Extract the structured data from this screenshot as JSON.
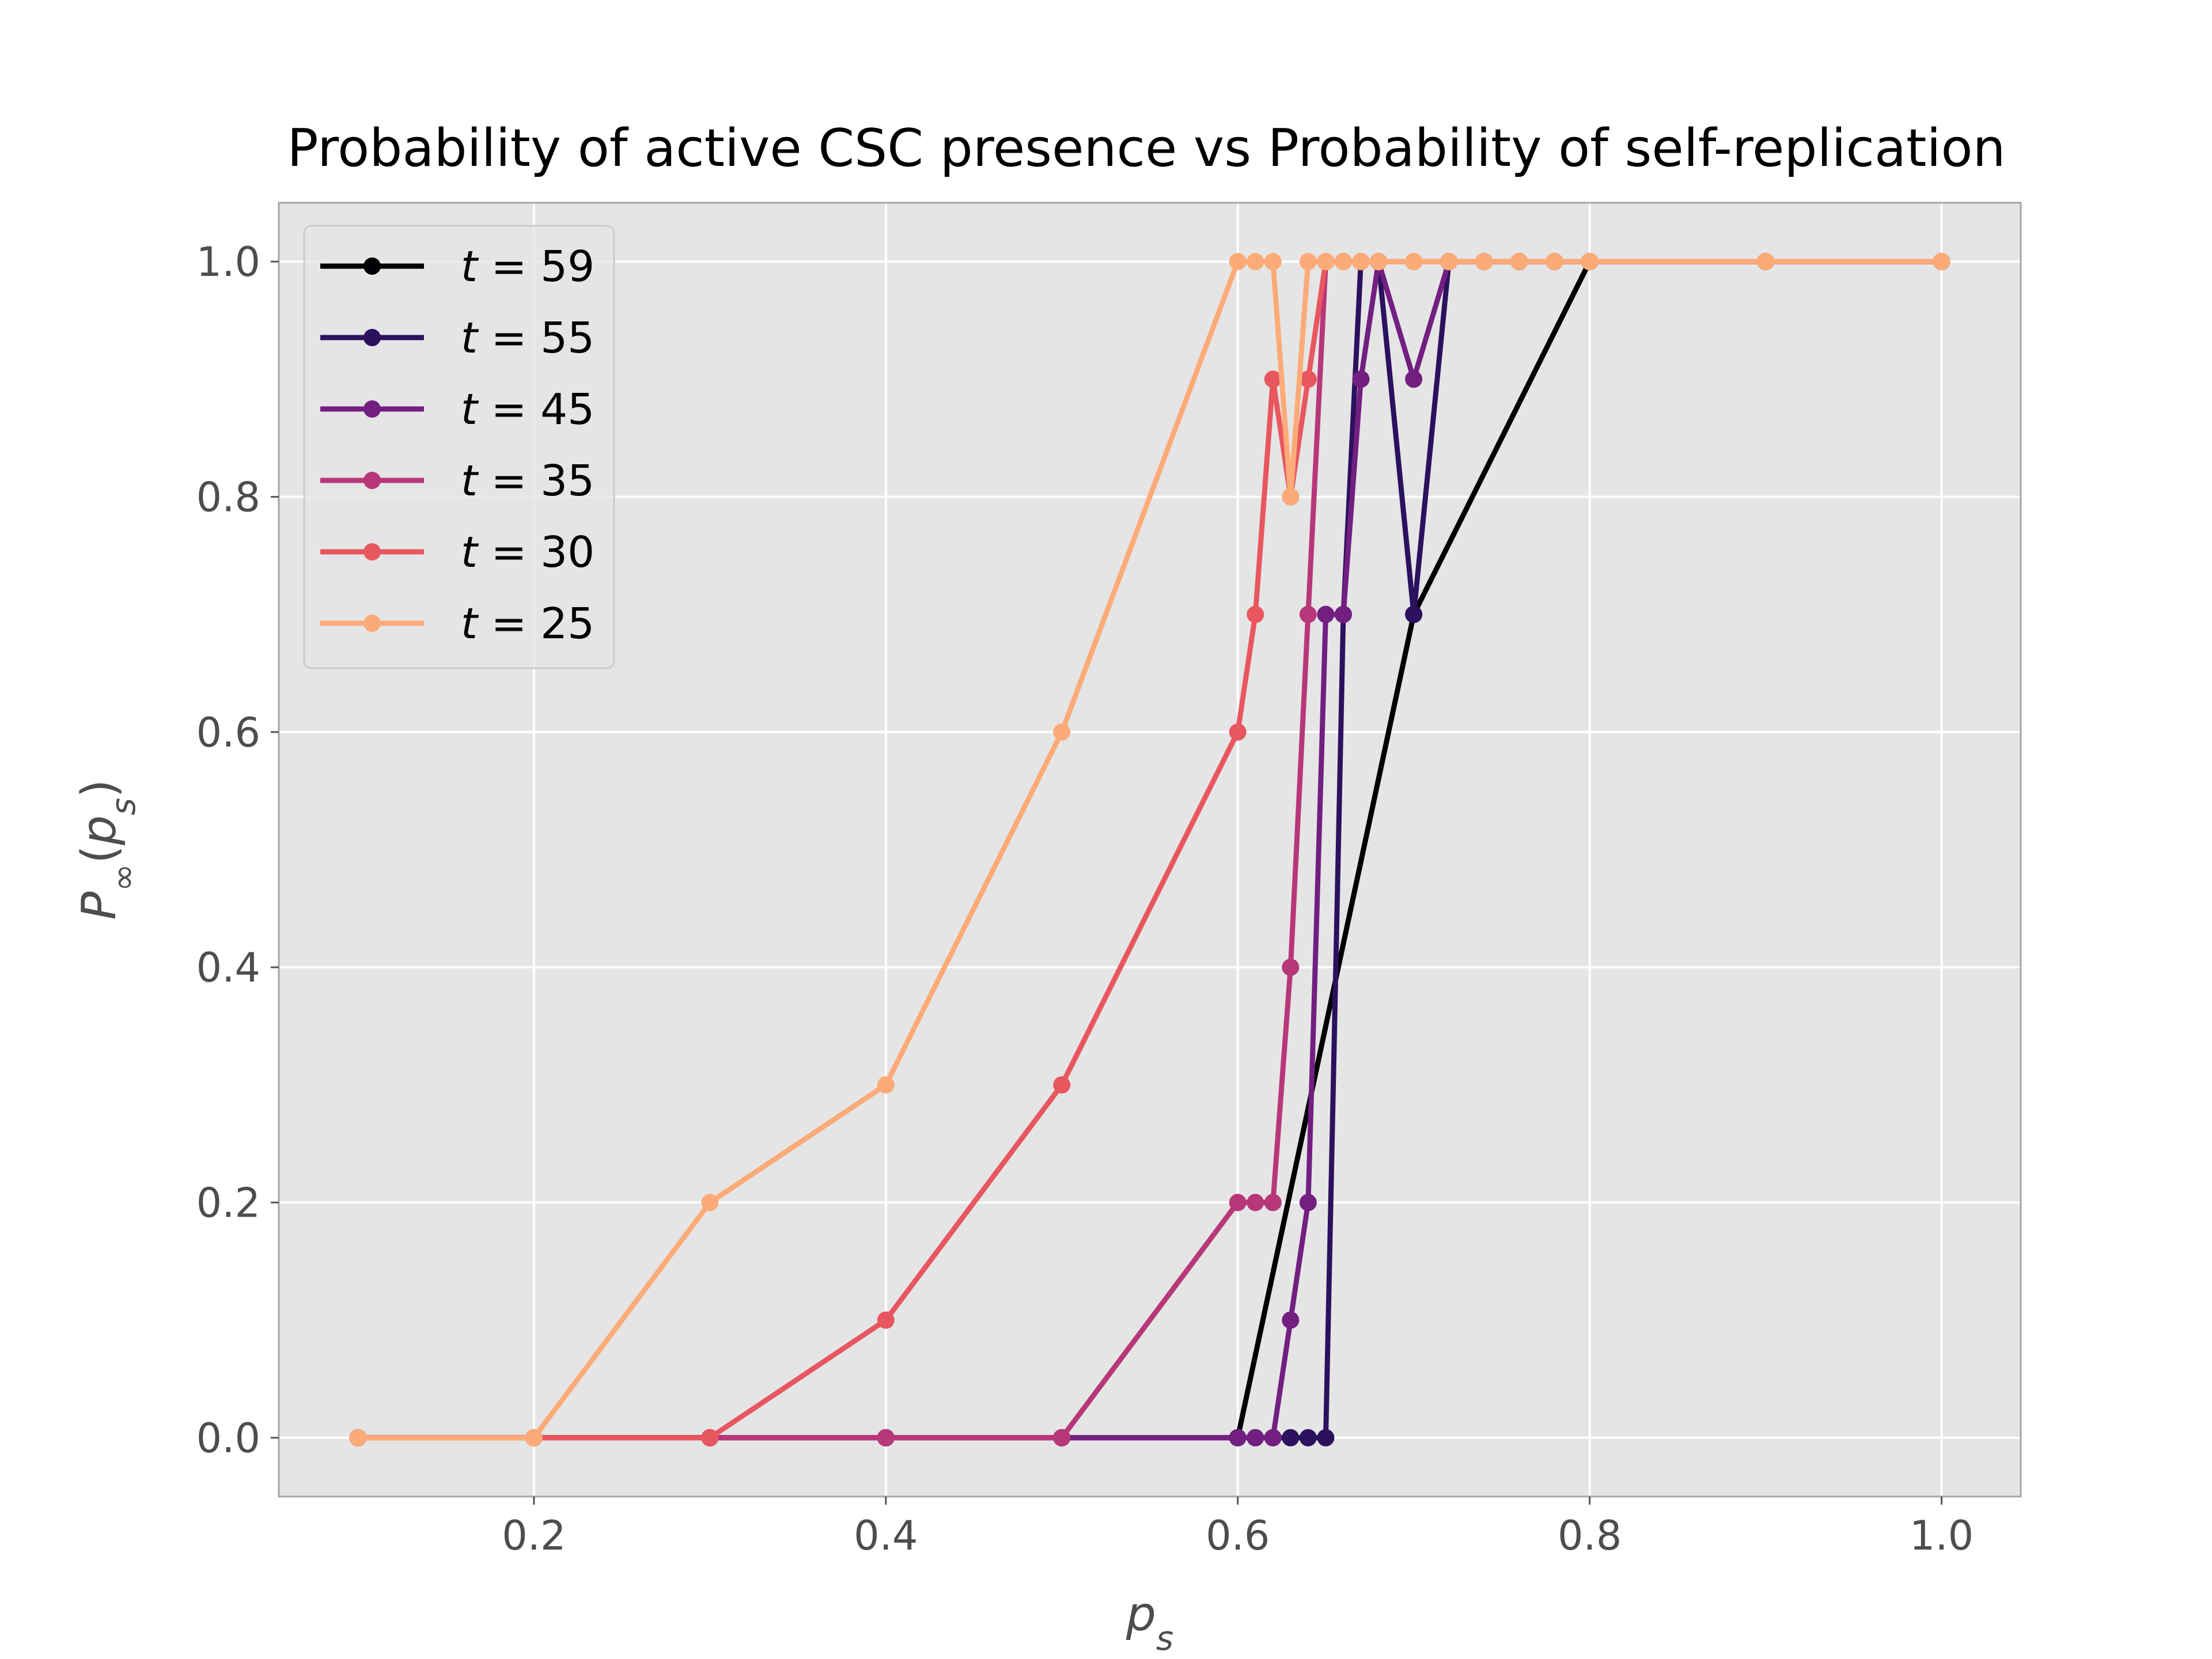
{
  "chart_data": {
    "type": "line",
    "title": "Probability of active CSC presence vs Probability of self-replication",
    "xlabel": "p_s",
    "ylabel": "P∞(p_s)",
    "xlim": [
      0.055,
      1.045
    ],
    "ylim": [
      -0.05,
      1.05
    ],
    "x_ticks": [
      0.2,
      0.4,
      0.6,
      0.8,
      1.0
    ],
    "x_tick_labels": [
      "0.2",
      "0.4",
      "0.6",
      "0.8",
      "1.0"
    ],
    "y_ticks": [
      0.0,
      0.2,
      0.4,
      0.6,
      0.8,
      1.0
    ],
    "y_tick_labels": [
      "0.0",
      "0.2",
      "0.4",
      "0.6",
      "0.8",
      "1.0"
    ],
    "grid": true,
    "legend_position": "top-left",
    "background": "#e5e5e5",
    "series": [
      {
        "name": "t = 59",
        "t": "59",
        "color": "#000004",
        "x": [
          0.1,
          0.2,
          0.3,
          0.4,
          0.5,
          0.6,
          0.7,
          0.8,
          0.9,
          1.0
        ],
        "y": [
          0.0,
          0.0,
          0.0,
          0.0,
          0.0,
          0.0,
          0.7,
          1.0,
          1.0,
          1.0
        ]
      },
      {
        "name": "t = 55",
        "t": "55",
        "color": "#2c115f",
        "x": [
          0.1,
          0.2,
          0.3,
          0.4,
          0.5,
          0.6,
          0.61,
          0.62,
          0.63,
          0.64,
          0.65,
          0.66,
          0.67,
          0.68,
          0.7,
          0.72,
          0.74,
          0.76,
          0.78,
          0.8,
          0.9,
          1.0
        ],
        "y": [
          0.0,
          0.0,
          0.0,
          0.0,
          0.0,
          0.0,
          0.0,
          0.0,
          0.0,
          0.0,
          0.0,
          0.7,
          1.0,
          1.0,
          0.7,
          1.0,
          1.0,
          1.0,
          1.0,
          1.0,
          1.0,
          1.0
        ]
      },
      {
        "name": "t = 45",
        "t": "45",
        "color": "#721f81",
        "x": [
          0.1,
          0.2,
          0.3,
          0.4,
          0.5,
          0.6,
          0.61,
          0.62,
          0.63,
          0.64,
          0.65,
          0.66,
          0.67,
          0.68,
          0.7,
          0.72,
          0.74,
          0.76,
          0.78,
          0.8,
          0.9,
          1.0
        ],
        "y": [
          0.0,
          0.0,
          0.0,
          0.0,
          0.0,
          0.0,
          0.0,
          0.0,
          0.1,
          0.2,
          0.7,
          0.7,
          0.9,
          1.0,
          0.9,
          1.0,
          1.0,
          1.0,
          1.0,
          1.0,
          1.0,
          1.0
        ]
      },
      {
        "name": "t = 35",
        "t": "35",
        "color": "#b73779",
        "x": [
          0.1,
          0.2,
          0.3,
          0.4,
          0.5,
          0.6,
          0.61,
          0.62,
          0.63,
          0.64,
          0.65,
          0.66,
          0.67,
          0.68,
          0.7,
          0.72,
          0.74,
          0.76,
          0.78,
          0.8,
          0.9,
          1.0
        ],
        "y": [
          0.0,
          0.0,
          0.0,
          0.0,
          0.0,
          0.2,
          0.2,
          0.2,
          0.4,
          0.7,
          1.0,
          1.0,
          1.0,
          1.0,
          1.0,
          1.0,
          1.0,
          1.0,
          1.0,
          1.0,
          1.0,
          1.0
        ]
      },
      {
        "name": "t = 30",
        "t": "30",
        "color": "#e8575f",
        "x": [
          0.1,
          0.2,
          0.3,
          0.4,
          0.5,
          0.6,
          0.61,
          0.62,
          0.63,
          0.64,
          0.65,
          0.66,
          0.67,
          0.68,
          0.7,
          0.72,
          0.74,
          0.76,
          0.78,
          0.8,
          0.9,
          1.0
        ],
        "y": [
          0.0,
          0.0,
          0.0,
          0.1,
          0.3,
          0.6,
          0.7,
          0.9,
          0.8,
          0.9,
          1.0,
          1.0,
          1.0,
          1.0,
          1.0,
          1.0,
          1.0,
          1.0,
          1.0,
          1.0,
          1.0,
          1.0
        ]
      },
      {
        "name": "t = 25",
        "t": "25",
        "color": "#fcab78",
        "x": [
          0.1,
          0.2,
          0.3,
          0.4,
          0.5,
          0.6,
          0.61,
          0.62,
          0.63,
          0.64,
          0.65,
          0.66,
          0.67,
          0.68,
          0.7,
          0.72,
          0.74,
          0.76,
          0.78,
          0.8,
          0.9,
          1.0
        ],
        "y": [
          0.0,
          0.0,
          0.2,
          0.3,
          0.6,
          1.0,
          1.0,
          1.0,
          0.8,
          1.0,
          1.0,
          1.0,
          1.0,
          1.0,
          1.0,
          1.0,
          1.0,
          1.0,
          1.0,
          1.0,
          1.0,
          1.0
        ]
      }
    ]
  }
}
